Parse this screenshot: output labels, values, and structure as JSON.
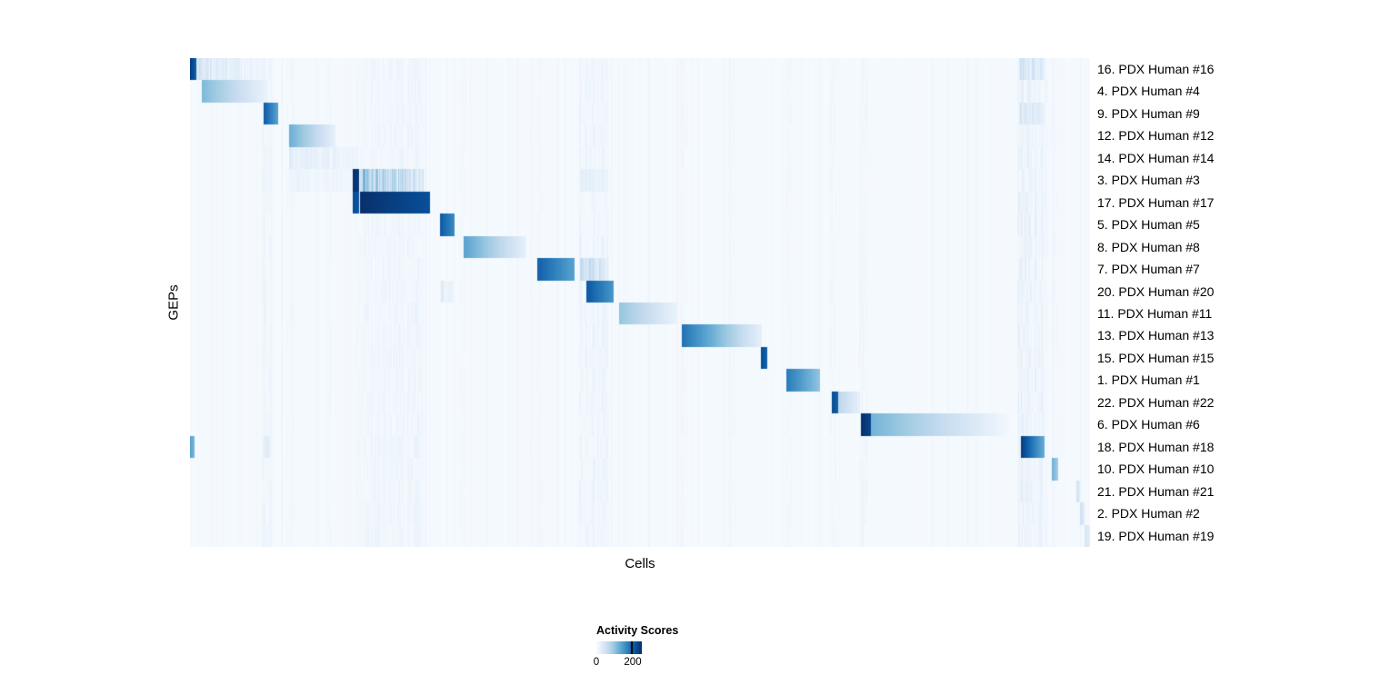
{
  "chart_data": {
    "type": "heatmap",
    "title": "",
    "xlabel": "Cells",
    "ylabel": "GEPs",
    "value_label": "Activity Scores",
    "value_range": [
      0,
      250
    ],
    "legend_ticks": [
      0,
      200
    ],
    "colormap": [
      "#f7fbff",
      "#deebf7",
      "#c6dbef",
      "#9ecae1",
      "#6baed6",
      "#4292c6",
      "#2171b5",
      "#08519c",
      "#08306b"
    ],
    "background_value": 0.012,
    "noise_stripes": [
      {
        "x0": 0.081,
        "x1": 0.09,
        "v": 0.1
      },
      {
        "x0": 0.108,
        "x1": 0.116,
        "v": 0.07
      },
      {
        "x0": 0.15,
        "x1": 0.156,
        "v": 0.05
      },
      {
        "x0": 0.185,
        "x1": 0.262,
        "v": 0.08
      },
      {
        "x0": 0.3,
        "x1": 0.308,
        "v": 0.05
      },
      {
        "x0": 0.385,
        "x1": 0.392,
        "v": 0.05
      },
      {
        "x0": 0.433,
        "x1": 0.465,
        "v": 0.09
      },
      {
        "x0": 0.546,
        "x1": 0.553,
        "v": 0.06
      },
      {
        "x0": 0.6,
        "x1": 0.606,
        "v": 0.04
      },
      {
        "x0": 0.662,
        "x1": 0.668,
        "v": 0.06
      },
      {
        "x0": 0.712,
        "x1": 0.719,
        "v": 0.06
      },
      {
        "x0": 0.744,
        "x1": 0.752,
        "v": 0.07
      },
      {
        "x0": 0.92,
        "x1": 0.952,
        "v": 0.14
      },
      {
        "x0": 0.957,
        "x1": 0.963,
        "v": 0.05
      }
    ],
    "rows": [
      {
        "label": "16. PDX Human #16",
        "blocks": [
          {
            "x0": 0.0,
            "x1": 0.007,
            "v0": 0.95,
            "v1": 0.8,
            "striped": false
          },
          {
            "x0": 0.007,
            "x1": 0.085,
            "v0": 0.22,
            "v1": 0.05,
            "striped": true
          },
          {
            "x0": 0.922,
            "x1": 0.95,
            "v0": 0.3,
            "v1": 0.15,
            "striped": true
          }
        ]
      },
      {
        "label": "4. PDX Human #4",
        "blocks": [
          {
            "x0": 0.013,
            "x1": 0.085,
            "v0": 0.45,
            "v1": 0.06,
            "striped": false
          }
        ]
      },
      {
        "label": "9. PDX Human #9",
        "blocks": [
          {
            "x0": 0.081,
            "x1": 0.097,
            "v0": 0.85,
            "v1": 0.55,
            "striped": false
          },
          {
            "x0": 0.922,
            "x1": 0.95,
            "v0": 0.22,
            "v1": 0.1,
            "striped": true
          }
        ]
      },
      {
        "label": "12. PDX Human #12",
        "blocks": [
          {
            "x0": 0.11,
            "x1": 0.161,
            "v0": 0.5,
            "v1": 0.08,
            "striped": false
          }
        ]
      },
      {
        "label": "14. PDX Human #14",
        "blocks": [
          {
            "x0": 0.11,
            "x1": 0.19,
            "v0": 0.16,
            "v1": 0.06,
            "striped": true
          }
        ]
      },
      {
        "label": "3. PDX Human #3",
        "blocks": [
          {
            "x0": 0.11,
            "x1": 0.178,
            "v0": 0.08,
            "v1": 0.05,
            "striped": true
          },
          {
            "x0": 0.18,
            "x1": 0.187,
            "v0": 1.0,
            "v1": 0.95,
            "striped": false
          },
          {
            "x0": 0.188,
            "x1": 0.259,
            "v0": 0.55,
            "v1": 0.25,
            "striped": true
          },
          {
            "x0": 0.433,
            "x1": 0.464,
            "v0": 0.12,
            "v1": 0.08,
            "striped": true
          }
        ]
      },
      {
        "label": "17. PDX Human #17",
        "blocks": [
          {
            "x0": 0.18,
            "x1": 0.187,
            "v0": 0.9,
            "v1": 0.85,
            "striped": false
          },
          {
            "x0": 0.188,
            "x1": 0.266,
            "v0": 1.0,
            "v1": 0.88,
            "striped": false
          }
        ]
      },
      {
        "label": "5. PDX Human #5",
        "blocks": [
          {
            "x0": 0.277,
            "x1": 0.293,
            "v0": 0.85,
            "v1": 0.65,
            "striped": false
          }
        ]
      },
      {
        "label": "8. PDX Human #8",
        "blocks": [
          {
            "x0": 0.304,
            "x1": 0.373,
            "v0": 0.55,
            "v1": 0.08,
            "striped": false
          }
        ]
      },
      {
        "label": "7. PDX Human #7",
        "blocks": [
          {
            "x0": 0.385,
            "x1": 0.427,
            "v0": 0.82,
            "v1": 0.55,
            "striped": false
          },
          {
            "x0": 0.433,
            "x1": 0.464,
            "v0": 0.35,
            "v1": 0.18,
            "striped": true
          }
        ]
      },
      {
        "label": "20. PDX Human #20",
        "blocks": [
          {
            "x0": 0.277,
            "x1": 0.292,
            "v0": 0.14,
            "v1": 0.08,
            "striped": true
          },
          {
            "x0": 0.44,
            "x1": 0.47,
            "v0": 0.85,
            "v1": 0.6,
            "striped": false
          }
        ]
      },
      {
        "label": "11. PDX Human #11",
        "blocks": [
          {
            "x0": 0.476,
            "x1": 0.541,
            "v0": 0.4,
            "v1": 0.06,
            "striped": false
          }
        ]
      },
      {
        "label": "13. PDX Human #13",
        "blocks": [
          {
            "x0": 0.546,
            "x1": 0.635,
            "v0": 0.75,
            "v1": 0.08,
            "striped": false
          }
        ]
      },
      {
        "label": "15. PDX Human #15",
        "blocks": [
          {
            "x0": 0.634,
            "x1": 0.641,
            "v0": 0.9,
            "v1": 0.8,
            "striped": false
          }
        ]
      },
      {
        "label": "1. PDX Human #1",
        "blocks": [
          {
            "x0": 0.662,
            "x1": 0.699,
            "v0": 0.72,
            "v1": 0.4,
            "striped": false
          }
        ]
      },
      {
        "label": "22. PDX Human #22",
        "blocks": [
          {
            "x0": 0.713,
            "x1": 0.72,
            "v0": 0.9,
            "v1": 0.8,
            "striped": false
          },
          {
            "x0": 0.72,
            "x1": 0.744,
            "v0": 0.28,
            "v1": 0.08,
            "striped": false
          }
        ]
      },
      {
        "label": "6. PDX Human #6",
        "blocks": [
          {
            "x0": 0.745,
            "x1": 0.756,
            "v0": 1.0,
            "v1": 0.92,
            "striped": false
          },
          {
            "x0": 0.756,
            "x1": 0.911,
            "v0": 0.48,
            "v1": 0.02,
            "striped": false
          }
        ]
      },
      {
        "label": "18. PDX Human #18",
        "blocks": [
          {
            "x0": 0.0,
            "x1": 0.005,
            "v0": 0.55,
            "v1": 0.45,
            "striped": false
          },
          {
            "x0": 0.082,
            "x1": 0.09,
            "v0": 0.2,
            "v1": 0.12,
            "striped": true
          },
          {
            "x0": 0.923,
            "x1": 0.949,
            "v0": 0.95,
            "v1": 0.5,
            "striped": false
          }
        ]
      },
      {
        "label": "10. PDX Human #10",
        "blocks": [
          {
            "x0": 0.957,
            "x1": 0.964,
            "v0": 0.5,
            "v1": 0.35,
            "striped": false
          }
        ]
      },
      {
        "label": "21. PDX Human #21",
        "blocks": [
          {
            "x0": 0.984,
            "x1": 0.988,
            "v0": 0.2,
            "v1": 0.12,
            "striped": false
          }
        ]
      },
      {
        "label": "2. PDX Human #2",
        "blocks": [
          {
            "x0": 0.988,
            "x1": 0.993,
            "v0": 0.22,
            "v1": 0.12,
            "striped": false
          }
        ]
      },
      {
        "label": "19. PDX Human #19",
        "blocks": [
          {
            "x0": 0.993,
            "x1": 1.0,
            "v0": 0.18,
            "v1": 0.08,
            "striped": false
          }
        ]
      }
    ]
  }
}
